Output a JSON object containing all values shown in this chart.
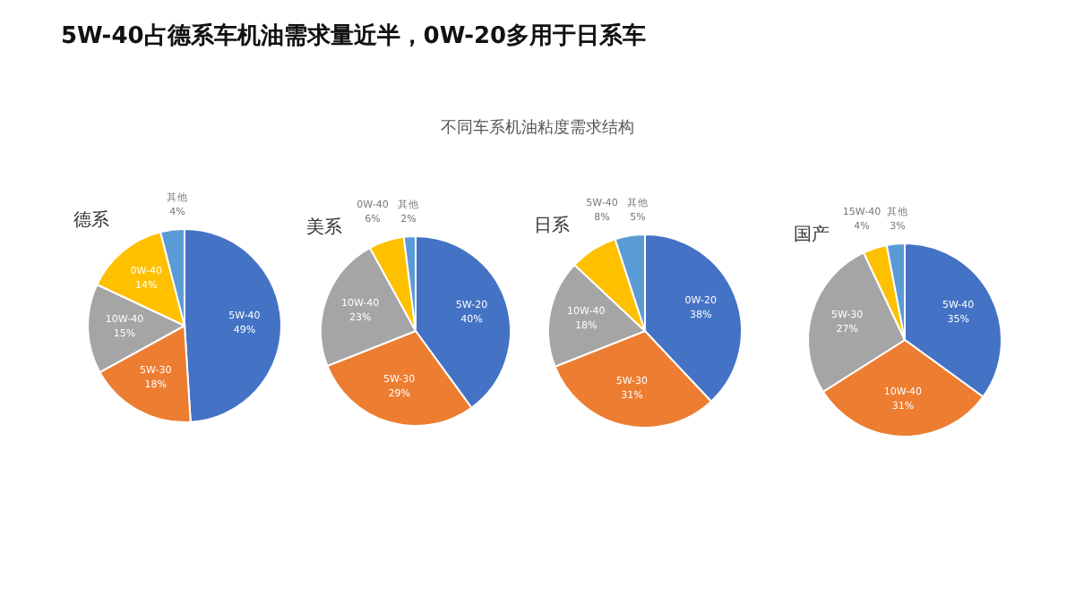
{
  "chart_data": [
    {
      "type": "other",
      "title": "5W-40占德系车机油需求量近半，0W-20多用于日系车",
      "subtitle": "不同车系机油粘度需求结构"
    },
    {
      "type": "pie",
      "title": "德系",
      "categories": [
        "5W-40",
        "5W-30",
        "10W-40",
        "0W-40",
        "其他"
      ],
      "values": [
        49,
        18,
        15,
        14,
        4
      ],
      "colors": [
        "#4472c4",
        "#ed7d31",
        "#a5a5a5",
        "#ffc000",
        "#5b9bd5"
      ],
      "value_labels": [
        "49%",
        "18%",
        "15%",
        "14%",
        "4%"
      ]
    },
    {
      "type": "pie",
      "title": "美系",
      "categories": [
        "5W-20",
        "5W-30",
        "10W-40",
        "0W-40",
        "其他"
      ],
      "values": [
        40,
        29,
        23,
        6,
        2
      ],
      "colors": [
        "#4472c4",
        "#ed7d31",
        "#a5a5a5",
        "#ffc000",
        "#5b9bd5"
      ],
      "value_labels": [
        "40%",
        "29%",
        "23%",
        "6%",
        "2%"
      ]
    },
    {
      "type": "pie",
      "title": "日系",
      "categories": [
        "0W-20",
        "5W-30",
        "10W-40",
        "5W-40",
        "其他"
      ],
      "values": [
        38,
        31,
        18,
        8,
        5
      ],
      "colors": [
        "#4472c4",
        "#ed7d31",
        "#a5a5a5",
        "#ffc000",
        "#5b9bd5"
      ],
      "value_labels": [
        "38%",
        "31%",
        "18%",
        "8%",
        "5%"
      ]
    },
    {
      "type": "pie",
      "title": "国产",
      "categories": [
        "5W-40",
        "10W-40",
        "5W-30",
        "15W-40",
        "其他"
      ],
      "values": [
        35,
        31,
        27,
        4,
        3
      ],
      "colors": [
        "#4472c4",
        "#ed7d31",
        "#a5a5a5",
        "#ffc000",
        "#5b9bd5"
      ],
      "value_labels": [
        "35%",
        "31%",
        "27%",
        "4%",
        "3%"
      ]
    }
  ]
}
